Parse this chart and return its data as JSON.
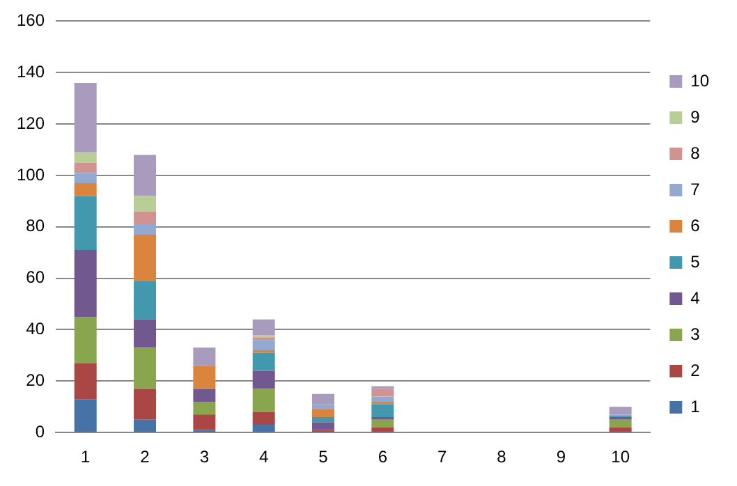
{
  "chart_data": {
    "type": "bar",
    "stacked": true,
    "categories": [
      "1",
      "2",
      "3",
      "4",
      "5",
      "6",
      "7",
      "8",
      "9",
      "10"
    ],
    "series": [
      {
        "name": "1",
        "color": "#4572a7",
        "values": [
          13,
          5,
          1,
          3,
          0,
          0,
          0,
          0,
          0,
          0
        ]
      },
      {
        "name": "2",
        "color": "#aa4643",
        "values": [
          14,
          12,
          6,
          5,
          1,
          2,
          0,
          0,
          0,
          2
        ]
      },
      {
        "name": "3",
        "color": "#89a54e",
        "values": [
          18,
          16,
          5,
          9,
          0,
          3,
          0,
          0,
          0,
          3
        ]
      },
      {
        "name": "4",
        "color": "#71588f",
        "values": [
          26,
          11,
          5,
          7,
          3,
          1,
          0,
          0,
          0,
          1
        ]
      },
      {
        "name": "5",
        "color": "#4198af",
        "values": [
          21,
          15,
          0,
          7,
          2,
          5,
          0,
          0,
          0,
          0.5
        ]
      },
      {
        "name": "6",
        "color": "#db843d",
        "values": [
          5,
          18,
          9,
          1,
          3,
          1,
          0,
          0,
          0,
          0
        ]
      },
      {
        "name": "7",
        "color": "#93a9cf",
        "values": [
          4,
          4,
          0,
          4,
          2,
          2,
          0,
          0,
          0,
          0.5
        ]
      },
      {
        "name": "8",
        "color": "#d19392",
        "values": [
          4,
          5,
          0,
          1,
          0,
          3,
          0,
          0,
          0,
          0
        ]
      },
      {
        "name": "9",
        "color": "#b9cd96",
        "values": [
          4,
          6,
          0,
          1,
          0,
          0,
          0,
          0,
          0,
          0
        ]
      },
      {
        "name": "10",
        "color": "#a99bbd",
        "values": [
          27,
          16,
          7,
          6,
          4,
          1,
          0,
          0,
          0,
          3
        ]
      }
    ],
    "ylim": [
      0,
      160
    ],
    "yticks": [
      0,
      20,
      40,
      60,
      80,
      100,
      120,
      140,
      160
    ],
    "grid": "y",
    "legend": "right"
  }
}
